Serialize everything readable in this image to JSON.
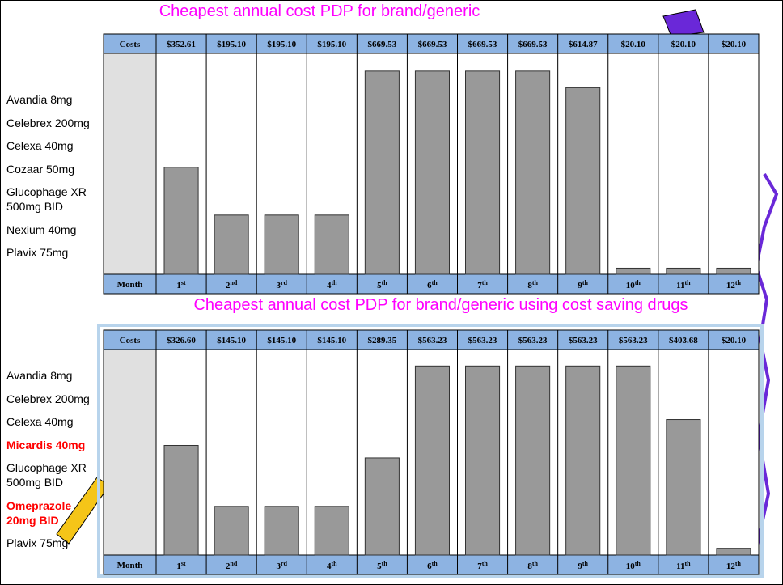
{
  "chart_data": [
    {
      "type": "bar",
      "title": "Cheapest annual cost PDP for brand/generic",
      "header_label": "Costs",
      "axis_label": "Month",
      "categories": [
        "1st",
        "2nd",
        "3rd",
        "4th",
        "5th",
        "6th",
        "7th",
        "8th",
        "9th",
        "10th",
        "11th",
        "12th"
      ],
      "values": [
        352.61,
        195.1,
        195.1,
        195.1,
        669.53,
        669.53,
        669.53,
        669.53,
        614.87,
        20.1,
        20.1,
        20.1
      ],
      "value_labels": [
        "$352.61",
        "$195.10",
        "$195.10",
        "$195.10",
        "$669.53",
        "$669.53",
        "$669.53",
        "$669.53",
        "$614.87",
        "$20.10",
        "$20.10",
        "$20.10"
      ],
      "color": "#999999",
      "drugs": [
        {
          "label": "Avandia 8mg"
        },
        {
          "label": "Celebrex 200mg"
        },
        {
          "label": "Celexa 40mg"
        },
        {
          "label": "Cozaar 50mg"
        },
        {
          "label": "Glucophage XR 500mg BID"
        },
        {
          "label": "Nexium 40mg"
        },
        {
          "label": "Plavix 75mg"
        }
      ]
    },
    {
      "type": "bar",
      "title": "Cheapest annual cost PDP for brand/generic using cost saving drugs",
      "header_label": "Costs",
      "axis_label": "Month",
      "categories": [
        "1st",
        "2nd",
        "3rd",
        "4th",
        "5th",
        "6th",
        "7th",
        "8th",
        "9th",
        "10th",
        "11th",
        "12th"
      ],
      "values": [
        326.6,
        145.1,
        145.1,
        145.1,
        289.35,
        563.23,
        563.23,
        563.23,
        563.23,
        563.23,
        403.68,
        20.1
      ],
      "value_labels": [
        "$326.60",
        "$145.10",
        "$145.10",
        "$145.10",
        "$289.35",
        "$563.23",
        "$563.23",
        "$563.23",
        "$563.23",
        "$563.23",
        "$403.68",
        "$20.10"
      ],
      "color": "#999999",
      "drugs": [
        {
          "label": "Avandia 8mg"
        },
        {
          "label": "Celebrex 200mg"
        },
        {
          "label": "Celexa 40mg"
        },
        {
          "label": "Micardis 40mg",
          "color": "#ff0000"
        },
        {
          "label": "Glucophage XR 500mg BID"
        },
        {
          "label": "Omeprazole 20mg BID",
          "color": "#ff0000"
        },
        {
          "label": "Plavix 75mg"
        }
      ]
    }
  ]
}
